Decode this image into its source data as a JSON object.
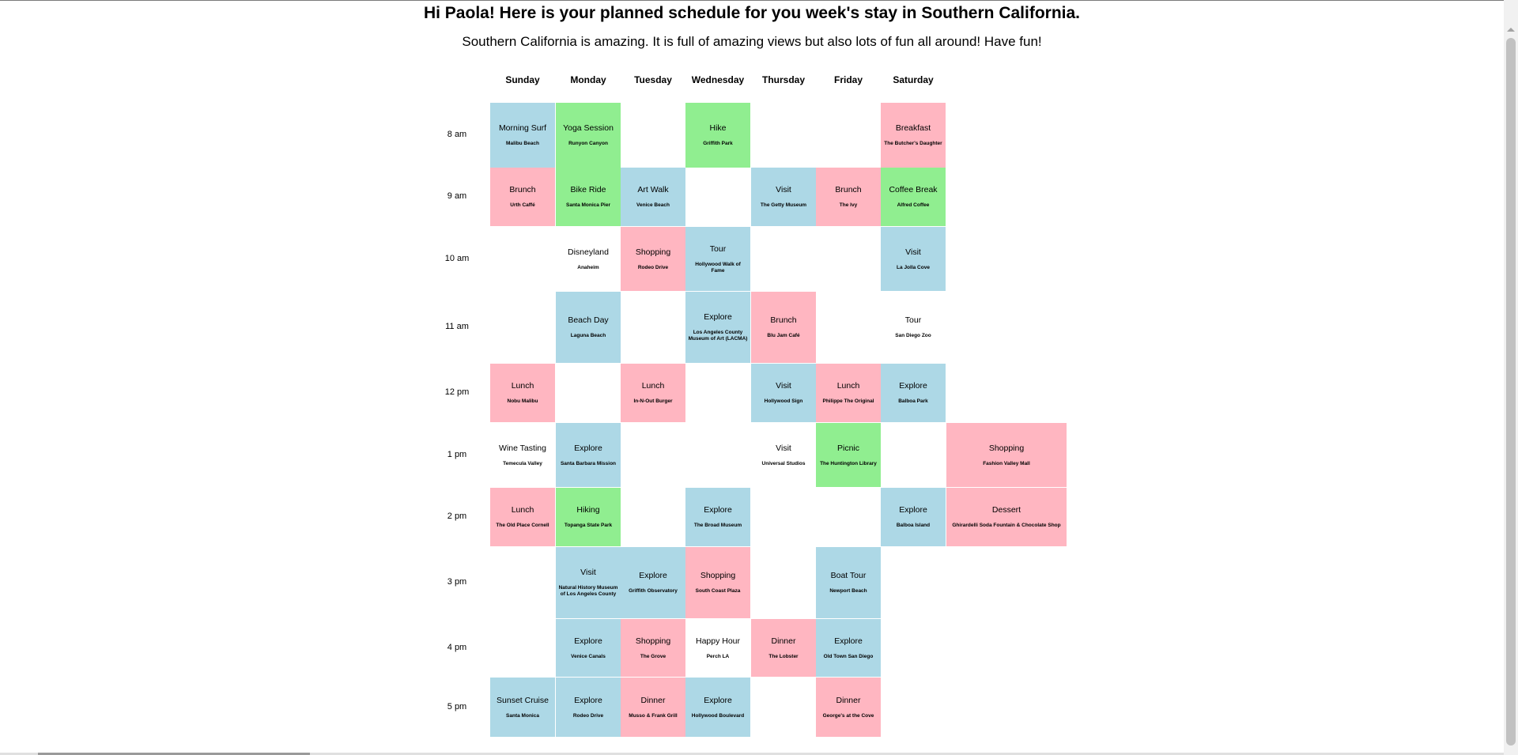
{
  "title": "Hi Paola! Here is your planned schedule for you week's stay in Southern California.",
  "subtitle": "Southern California is amazing. It is full of amazing views but also lots of fun all around! Have fun!",
  "days": [
    "Sunday",
    "Monday",
    "Tuesday",
    "Wednesday",
    "Thursday",
    "Friday",
    "Saturday"
  ],
  "times": [
    "8 am",
    "9 am",
    "10 am",
    "11 am",
    "12 pm",
    "1 pm",
    "2 pm",
    "3 pm",
    "4 pm",
    "5 pm"
  ],
  "colors": {
    "blue": "#add8e6",
    "green": "#90ee90",
    "pink": "#ffb6c1",
    "white": "#ffffff"
  },
  "schedule": [
    {
      "row": 0,
      "col": 0,
      "title": "Morning Surf",
      "location": "Malibu Beach",
      "color": "blue"
    },
    {
      "row": 0,
      "col": 1,
      "title": "Yoga Session",
      "location": "Runyon Canyon",
      "color": "green"
    },
    {
      "row": 0,
      "col": 3,
      "title": "Hike",
      "location": "Griffith Park",
      "color": "green"
    },
    {
      "row": 0,
      "col": 6,
      "title": "Breakfast",
      "location": "The Butcher's Daughter",
      "color": "pink"
    },
    {
      "row": 1,
      "col": 0,
      "title": "Brunch",
      "location": "Urth Caffé",
      "color": "pink"
    },
    {
      "row": 1,
      "col": 1,
      "title": "Bike Ride",
      "location": "Santa Monica Pier",
      "color": "green"
    },
    {
      "row": 1,
      "col": 2,
      "title": "Art Walk",
      "location": "Venice Beach",
      "color": "blue"
    },
    {
      "row": 1,
      "col": 4,
      "title": "Visit",
      "location": "The Getty Museum",
      "color": "blue"
    },
    {
      "row": 1,
      "col": 5,
      "title": "Brunch",
      "location": "The Ivy",
      "color": "pink"
    },
    {
      "row": 1,
      "col": 6,
      "title": "Coffee Break",
      "location": "Alfred Coffee",
      "color": "green"
    },
    {
      "row": 2,
      "col": 1,
      "title": "Disneyland",
      "location": "Anaheim",
      "color": "white"
    },
    {
      "row": 2,
      "col": 2,
      "title": "Shopping",
      "location": "Rodeo Drive",
      "color": "pink"
    },
    {
      "row": 2,
      "col": 3,
      "title": "Tour",
      "location": "Hollywood Walk of Fame",
      "color": "blue"
    },
    {
      "row": 2,
      "col": 6,
      "title": "Visit",
      "location": "La Jolla Cove",
      "color": "blue"
    },
    {
      "row": 3,
      "col": 1,
      "title": "Beach Day",
      "location": "Laguna Beach",
      "color": "blue"
    },
    {
      "row": 3,
      "col": 3,
      "title": "Explore",
      "location": "Los Angeles County Museum of Art (LACMA)",
      "color": "blue"
    },
    {
      "row": 3,
      "col": 4,
      "title": "Brunch",
      "location": "Blu Jam Café",
      "color": "pink"
    },
    {
      "row": 3,
      "col": 6,
      "title": "Tour",
      "location": "San Diego Zoo",
      "color": "white"
    },
    {
      "row": 4,
      "col": 0,
      "title": "Lunch",
      "location": "Nobu Malibu",
      "color": "pink"
    },
    {
      "row": 4,
      "col": 2,
      "title": "Lunch",
      "location": "In-N-Out Burger",
      "color": "pink"
    },
    {
      "row": 4,
      "col": 4,
      "title": "Visit",
      "location": "Hollywood Sign",
      "color": "blue"
    },
    {
      "row": 4,
      "col": 5,
      "title": "Lunch",
      "location": "Philippe The Original",
      "color": "pink"
    },
    {
      "row": 4,
      "col": 6,
      "title": "Explore",
      "location": "Balboa Park",
      "color": "blue"
    },
    {
      "row": 5,
      "col": 0,
      "title": "Wine Tasting",
      "location": "Temecula Valley",
      "color": "white"
    },
    {
      "row": 5,
      "col": 1,
      "title": "Explore",
      "location": "Santa Barbara Mission",
      "color": "blue"
    },
    {
      "row": 5,
      "col": 4,
      "title": "Visit",
      "location": "Universal Studios",
      "color": "white"
    },
    {
      "row": 5,
      "col": 5,
      "title": "Picnic",
      "location": "The Huntington Library",
      "color": "green"
    },
    {
      "row": 5,
      "col": 7,
      "title": "Shopping",
      "location": "Fashion Valley Mall",
      "color": "pink"
    },
    {
      "row": 6,
      "col": 0,
      "title": "Lunch",
      "location": "The Old Place Cornell",
      "color": "pink"
    },
    {
      "row": 6,
      "col": 1,
      "title": "Hiking",
      "location": "Topanga State Park",
      "color": "green"
    },
    {
      "row": 6,
      "col": 3,
      "title": "Explore",
      "location": "The Broad Museum",
      "color": "blue"
    },
    {
      "row": 6,
      "col": 6,
      "title": "Explore",
      "location": "Balboa Island",
      "color": "blue"
    },
    {
      "row": 6,
      "col": 7,
      "title": "Dessert",
      "location": "Ghirardelli Soda Fountain & Chocolate Shop",
      "color": "pink"
    },
    {
      "row": 7,
      "col": 1,
      "title": "Visit",
      "location": "Natural History Museum of Los Angeles County",
      "color": "blue"
    },
    {
      "row": 7,
      "col": 2,
      "title": "Explore",
      "location": "Griffith Observatory",
      "color": "blue"
    },
    {
      "row": 7,
      "col": 3,
      "title": "Shopping",
      "location": "South Coast Plaza",
      "color": "pink"
    },
    {
      "row": 7,
      "col": 5,
      "title": "Boat Tour",
      "location": "Newport Beach",
      "color": "blue"
    },
    {
      "row": 8,
      "col": 1,
      "title": "Explore",
      "location": "Venice Canals",
      "color": "blue"
    },
    {
      "row": 8,
      "col": 2,
      "title": "Shopping",
      "location": "The Grove",
      "color": "pink"
    },
    {
      "row": 8,
      "col": 3,
      "title": "Happy Hour",
      "location": "Perch LA",
      "color": "white"
    },
    {
      "row": 8,
      "col": 4,
      "title": "Dinner",
      "location": "The Lobster",
      "color": "pink"
    },
    {
      "row": 8,
      "col": 5,
      "title": "Explore",
      "location": "Old Town San Diego",
      "color": "blue"
    },
    {
      "row": 9,
      "col": 0,
      "title": "Sunset Cruise",
      "location": "Santa Monica",
      "color": "blue"
    },
    {
      "row": 9,
      "col": 1,
      "title": "Explore",
      "location": "Rodeo Drive",
      "color": "blue"
    },
    {
      "row": 9,
      "col": 2,
      "title": "Dinner",
      "location": "Musso & Frank Grill",
      "color": "pink"
    },
    {
      "row": 9,
      "col": 3,
      "title": "Explore",
      "location": "Hollywood Boulevard",
      "color": "blue"
    },
    {
      "row": 9,
      "col": 5,
      "title": "Dinner",
      "location": "George's at the Cove",
      "color": "pink"
    }
  ]
}
